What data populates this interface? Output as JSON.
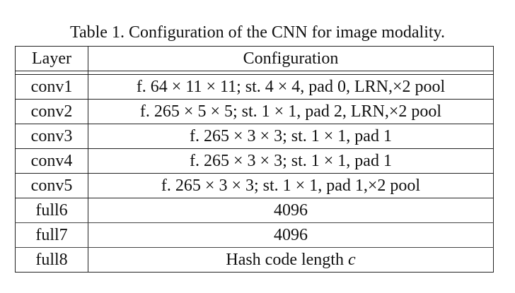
{
  "caption": "Table 1. Configuration of the CNN for image modality.",
  "table": {
    "headers": [
      "Layer",
      "Configuration"
    ],
    "rows": [
      {
        "layer": "conv1",
        "config": "f. 64 × 11 × 11; st. 4 × 4, pad 0, LRN,×2 pool"
      },
      {
        "layer": "conv2",
        "config": "f. 265 × 5 × 5; st. 1 × 1, pad 2, LRN,×2 pool"
      },
      {
        "layer": "conv3",
        "config": "f. 265 × 3 × 3; st. 1 × 1, pad 1"
      },
      {
        "layer": "conv4",
        "config": "f. 265 × 3 × 3; st. 1 × 1, pad 1"
      },
      {
        "layer": "conv5",
        "config": "f. 265 × 3 × 3; st. 1 × 1, pad 1,×2 pool"
      },
      {
        "layer": "full6",
        "config": "4096"
      },
      {
        "layer": "full7",
        "config": "4096"
      },
      {
        "layer": "full8",
        "config_text": "Hash code length",
        "config_var": "c"
      }
    ]
  }
}
